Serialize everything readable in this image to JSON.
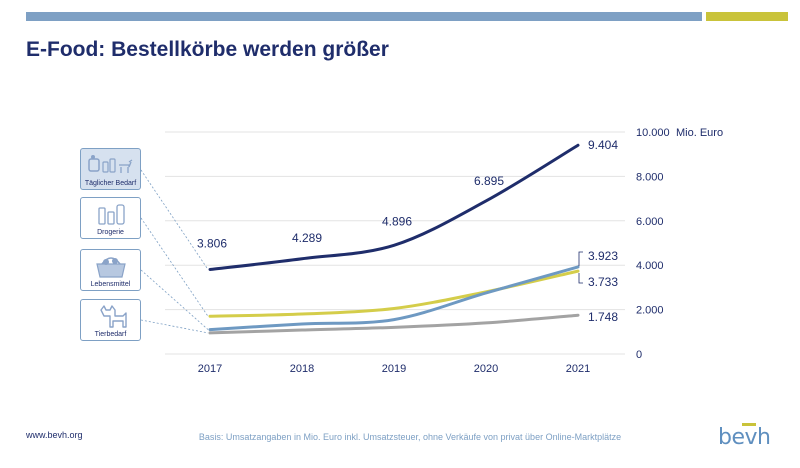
{
  "title": "E-Food: Bestellkörbe werden größer",
  "footer": {
    "url": "www.bevh.org",
    "note": "Basis: Umsatzangaben in Mio. Euro inkl. Umsatzsteuer, ohne Verkäufe von privat über Online-Marktplätze",
    "logo": "bevh"
  },
  "colors": {
    "navy": "#1f2d6b",
    "blue": "#6e99c2",
    "yellow": "#d4cd4a",
    "gray": "#a3a3a3",
    "header_blue": "#7ea0c4",
    "header_yellow": "#c9c33a"
  },
  "categories": [
    {
      "label": "Täglicher Bedarf",
      "icon": "daily-needs-icon"
    },
    {
      "label": "Drogerie",
      "icon": "drugstore-icon"
    },
    {
      "label": "Lebensmittel",
      "icon": "grocery-basket-icon"
    },
    {
      "label": "Tierbedarf",
      "icon": "dog-icon"
    }
  ],
  "chart_data": {
    "type": "line",
    "x": [
      "2017",
      "2018",
      "2019",
      "2020",
      "2021"
    ],
    "ylim": [
      0,
      10000
    ],
    "yticks": [
      "0",
      "2.000",
      "4.000",
      "6.000",
      "8.000",
      "10.000"
    ],
    "unit_label": "Mio. Euro",
    "series": [
      {
        "name": "Täglicher Bedarf",
        "color": "#1f2d6b",
        "values": [
          3806,
          4289,
          4896,
          6895,
          9404
        ],
        "labels": [
          "3.806",
          "4.289",
          "4.896",
          "6.895",
          "9.404"
        ]
      },
      {
        "name": "Drogerie",
        "color": "#d4cd4a",
        "values": [
          1700,
          1800,
          2050,
          2800,
          3733
        ],
        "labels": [
          "",
          "",
          "",
          "",
          "3.733"
        ]
      },
      {
        "name": "Lebensmittel",
        "color": "#6e99c2",
        "values": [
          1100,
          1350,
          1550,
          2750,
          3923
        ],
        "labels": [
          "",
          "",
          "",
          "",
          "3.923"
        ]
      },
      {
        "name": "Tierbedarf",
        "color": "#a3a3a3",
        "values": [
          950,
          1080,
          1200,
          1400,
          1748
        ],
        "labels": [
          "",
          "",
          "",
          "",
          "1.748"
        ]
      }
    ]
  }
}
